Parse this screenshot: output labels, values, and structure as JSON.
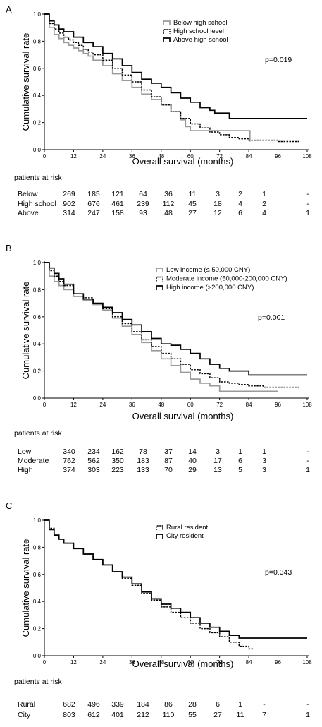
{
  "chart_data": [
    {
      "type": "line",
      "panel": "A",
      "xlabel": "Overall survival (months)",
      "ylabel": "Cumulative survival rate",
      "xlim": [
        0,
        108
      ],
      "ylim": [
        0,
        1.0
      ],
      "xticks": [
        "0",
        "12",
        "24",
        "36",
        "48",
        "60",
        "72",
        "84",
        "96",
        "108"
      ],
      "yticks": [
        "0.0",
        "0.2",
        "0.4",
        "0.6",
        "0.8",
        "1.0"
      ],
      "grid": false,
      "legend_placement": "top-right",
      "pvalue": "p=0.019",
      "series": [
        {
          "name": "Below high school",
          "style": "gray",
          "x": [
            0,
            2,
            4,
            6,
            8,
            10,
            12,
            14,
            16,
            18,
            20,
            24,
            28,
            32,
            36,
            40,
            44,
            48,
            52,
            56,
            58,
            60,
            64,
            68,
            72,
            84,
            84.5
          ],
          "y": [
            1.0,
            0.9,
            0.85,
            0.82,
            0.79,
            0.77,
            0.75,
            0.73,
            0.71,
            0.69,
            0.66,
            0.62,
            0.56,
            0.51,
            0.46,
            0.41,
            0.37,
            0.33,
            0.28,
            0.22,
            0.17,
            0.14,
            0.14,
            0.14,
            0.14,
            0.14,
            0.06
          ]
        },
        {
          "name": "High school level",
          "style": "dashed",
          "x": [
            0,
            2,
            4,
            6,
            8,
            10,
            12,
            14,
            16,
            18,
            20,
            24,
            28,
            32,
            36,
            40,
            44,
            48,
            52,
            56,
            60,
            64,
            68,
            72,
            76,
            80,
            84,
            90,
            96,
            105
          ],
          "y": [
            1.0,
            0.93,
            0.89,
            0.86,
            0.83,
            0.81,
            0.79,
            0.77,
            0.74,
            0.72,
            0.7,
            0.66,
            0.6,
            0.55,
            0.5,
            0.44,
            0.39,
            0.33,
            0.28,
            0.23,
            0.19,
            0.16,
            0.13,
            0.11,
            0.09,
            0.08,
            0.07,
            0.07,
            0.06,
            0.06
          ]
        },
        {
          "name": "Above high school",
          "style": "solid",
          "x": [
            0,
            2,
            4,
            6,
            8,
            12,
            16,
            20,
            24,
            28,
            32,
            36,
            40,
            44,
            48,
            52,
            56,
            60,
            64,
            68,
            70,
            76,
            84,
            96,
            108
          ],
          "y": [
            1.0,
            0.95,
            0.92,
            0.89,
            0.87,
            0.83,
            0.79,
            0.76,
            0.71,
            0.67,
            0.62,
            0.57,
            0.52,
            0.49,
            0.46,
            0.42,
            0.38,
            0.35,
            0.31,
            0.29,
            0.27,
            0.23,
            0.23,
            0.23,
            0.23
          ]
        }
      ],
      "risk_table": {
        "title": "patients at risk",
        "rows": [
          {
            "label": "Below",
            "values": [
              "269",
              "185",
              "121",
              "64",
              "36",
              "11",
              "3",
              "2",
              "1",
              "-"
            ]
          },
          {
            "label": "High school",
            "values": [
              "902",
              "676",
              "461",
              "239",
              "112",
              "45",
              "18",
              "4",
              "2",
              "-"
            ]
          },
          {
            "label": "Above",
            "values": [
              "314",
              "247",
              "158",
              "93",
              "48",
              "27",
              "12",
              "6",
              "4",
              "1"
            ]
          }
        ]
      }
    },
    {
      "type": "line",
      "panel": "B",
      "xlabel": "Overall survival (months)",
      "ylabel": "Cumulative survival rate",
      "xlim": [
        0,
        108
      ],
      "ylim": [
        0,
        1.0
      ],
      "xticks": [
        "0",
        "12",
        "24",
        "36",
        "48",
        "60",
        "72",
        "84",
        "96",
        "108"
      ],
      "yticks": [
        "0.0",
        "0.2",
        "0.4",
        "0.6",
        "0.8",
        "1.0"
      ],
      "grid": false,
      "legend_placement": "top-right",
      "pvalue": "p=0.001",
      "series": [
        {
          "name": "Low income (≤ 50,000 CNY)",
          "style": "gray",
          "x": [
            0,
            2,
            4,
            6,
            8,
            12,
            16,
            20,
            24,
            28,
            32,
            36,
            40,
            44,
            48,
            52,
            56,
            60,
            64,
            68,
            72,
            84,
            96
          ],
          "y": [
            1.0,
            0.9,
            0.86,
            0.83,
            0.8,
            0.75,
            0.72,
            0.69,
            0.65,
            0.59,
            0.53,
            0.47,
            0.41,
            0.35,
            0.29,
            0.24,
            0.19,
            0.14,
            0.11,
            0.09,
            0.05,
            0.05,
            0.05
          ]
        },
        {
          "name": "Moderate income  (50,000-200,000 CNY)",
          "style": "dashed",
          "x": [
            0,
            2,
            4,
            6,
            8,
            12,
            16,
            20,
            24,
            28,
            32,
            36,
            40,
            44,
            48,
            52,
            56,
            60,
            64,
            68,
            72,
            76,
            80,
            84,
            90,
            96,
            105
          ],
          "y": [
            1.0,
            0.94,
            0.9,
            0.86,
            0.83,
            0.77,
            0.74,
            0.7,
            0.66,
            0.6,
            0.55,
            0.49,
            0.43,
            0.38,
            0.33,
            0.29,
            0.25,
            0.21,
            0.18,
            0.15,
            0.12,
            0.11,
            0.1,
            0.09,
            0.08,
            0.08,
            0.08
          ]
        },
        {
          "name": "High income (>200,000 CNY)",
          "style": "solid",
          "x": [
            0,
            2,
            4,
            6,
            8,
            12,
            16,
            20,
            24,
            28,
            32,
            36,
            40,
            44,
            48,
            52,
            56,
            60,
            64,
            68,
            72,
            76,
            84,
            96,
            108
          ],
          "y": [
            1.0,
            0.96,
            0.92,
            0.88,
            0.84,
            0.77,
            0.73,
            0.7,
            0.67,
            0.63,
            0.58,
            0.54,
            0.49,
            0.44,
            0.4,
            0.39,
            0.36,
            0.33,
            0.29,
            0.25,
            0.22,
            0.2,
            0.17,
            0.17,
            0.17
          ]
        }
      ],
      "risk_table": {
        "title": "patients at risk",
        "rows": [
          {
            "label": "Low",
            "values": [
              "340",
              "234",
              "162",
              "78",
              "37",
              "14",
              "3",
              "1",
              "1",
              "-"
            ]
          },
          {
            "label": "Moderate",
            "values": [
              "762",
              "562",
              "350",
              "183",
              "87",
              "40",
              "17",
              "6",
              "3",
              "-"
            ]
          },
          {
            "label": "High",
            "values": [
              "374",
              "303",
              "223",
              "133",
              "70",
              "29",
              "13",
              "5",
              "3",
              "1"
            ]
          }
        ]
      }
    },
    {
      "type": "line",
      "panel": "C",
      "xlabel": "Overall survival (months)",
      "ylabel": "Cumulative survival rate",
      "xlim": [
        0,
        108
      ],
      "ylim": [
        0,
        1.0
      ],
      "xticks": [
        "0",
        "12",
        "24",
        "36",
        "48",
        "60",
        "72",
        "84",
        "96",
        "108"
      ],
      "yticks": [
        "0.0",
        "0.2",
        "0.4",
        "0.6",
        "0.8",
        "1.0"
      ],
      "grid": false,
      "legend_placement": "top-right",
      "pvalue": "p=0.343",
      "series": [
        {
          "name": "Rural resident",
          "style": "dashed",
          "x": [
            0,
            2,
            4,
            6,
            8,
            12,
            16,
            20,
            24,
            28,
            32,
            36,
            40,
            44,
            48,
            52,
            56,
            60,
            64,
            68,
            72,
            76,
            80,
            84,
            86
          ],
          "y": [
            1.0,
            0.94,
            0.89,
            0.86,
            0.83,
            0.79,
            0.75,
            0.71,
            0.67,
            0.62,
            0.57,
            0.52,
            0.46,
            0.41,
            0.36,
            0.32,
            0.28,
            0.24,
            0.2,
            0.17,
            0.14,
            0.1,
            0.07,
            0.05,
            0.05
          ]
        },
        {
          "name": "City resident",
          "style": "solid",
          "x": [
            0,
            2,
            4,
            6,
            8,
            12,
            16,
            20,
            24,
            28,
            32,
            36,
            40,
            44,
            48,
            52,
            56,
            60,
            64,
            68,
            72,
            76,
            80,
            84,
            96,
            108
          ],
          "y": [
            1.0,
            0.93,
            0.89,
            0.86,
            0.83,
            0.79,
            0.75,
            0.71,
            0.67,
            0.62,
            0.58,
            0.53,
            0.47,
            0.42,
            0.38,
            0.35,
            0.32,
            0.28,
            0.24,
            0.21,
            0.18,
            0.15,
            0.13,
            0.13,
            0.13,
            0.13
          ]
        }
      ],
      "risk_table": {
        "title": "patients at risk",
        "rows": [
          {
            "label": "Rural",
            "values": [
              "682",
              "496",
              "339",
              "184",
              "86",
              "28",
              "6",
              "1",
              "-",
              "-"
            ]
          },
          {
            "label": "City",
            "values": [
              "803",
              "612",
              "401",
              "212",
              "110",
              "55",
              "27",
              "11",
              "7",
              "1"
            ]
          }
        ]
      }
    }
  ]
}
